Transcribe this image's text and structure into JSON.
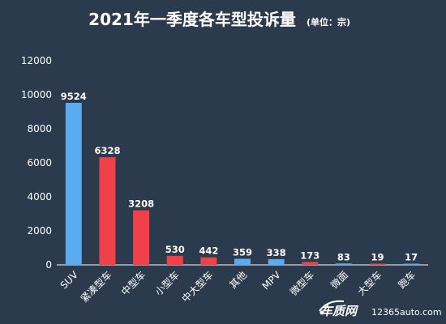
{
  "chart_data": {
    "type": "bar",
    "title": "2021年一季度各车型投诉量",
    "subtitle": "(单位：宗)",
    "categories": [
      "SUV",
      "紧凑型车",
      "中型车",
      "小型车",
      "中大型车",
      "其他",
      "MPV",
      "微型车",
      "微面",
      "大型车",
      "跑车"
    ],
    "values": [
      9524,
      6328,
      3208,
      530,
      442,
      359,
      338,
      173,
      83,
      19,
      17
    ],
    "colors": [
      "#5aabf0",
      "#f0414a",
      "#f0414a",
      "#f0414a",
      "#f0414a",
      "#5aabf0",
      "#5aabf0",
      "#f0414a",
      "#5aabf0",
      "#f0414a",
      "#5aabf0"
    ],
    "yticks": [
      0,
      2000,
      4000,
      6000,
      8000,
      10000,
      12000
    ],
    "ylim": [
      0,
      12000
    ],
    "grid": false
  },
  "watermark": {
    "brand": "车质网",
    "site": "12365auto.com"
  }
}
